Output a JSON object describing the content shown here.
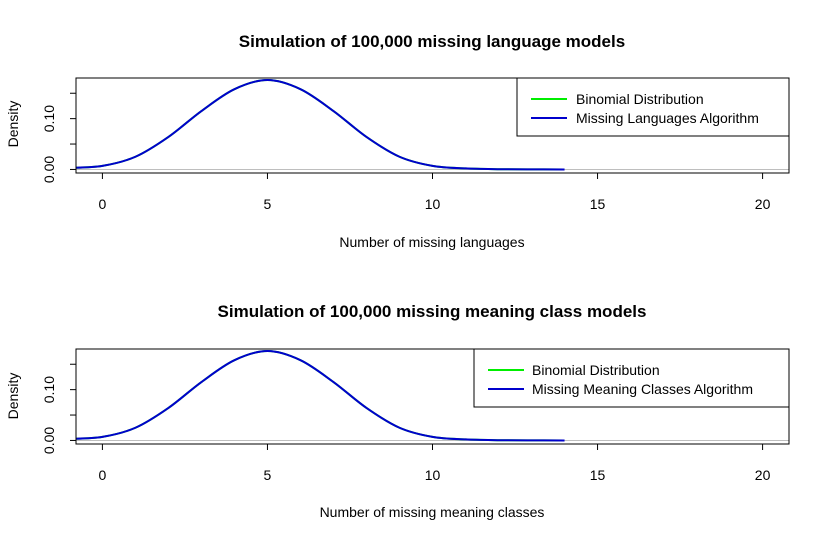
{
  "chart_data": [
    {
      "type": "line",
      "title": "Simulation of 100,000 missing language models",
      "xlabel": "Number of missing languages",
      "ylabel": "Density",
      "xlim": [
        -0.8,
        20.8
      ],
      "ylim": [
        -0.007,
        0.18
      ],
      "xticks": [
        "0",
        "5",
        "10",
        "15",
        "20"
      ],
      "yticks": [
        "0.00",
        "0.10"
      ],
      "ytick_values": [
        0.0,
        0.05,
        0.1,
        0.15
      ],
      "hline": 0,
      "legend": {
        "position": "top-right",
        "entries": [
          {
            "label": "Binomial Distribution",
            "color": "#00ee00"
          },
          {
            "label": "Missing Languages Algorithm",
            "color": "#0000cc"
          }
        ]
      },
      "series": [
        {
          "name": "Binomial Distribution",
          "color": "#00ee00",
          "x": [
            -1,
            0,
            1,
            2,
            3,
            4,
            5,
            6,
            7,
            8,
            9,
            10,
            11,
            12,
            13,
            14
          ],
          "y": [
            0.003,
            0.007,
            0.025,
            0.064,
            0.115,
            0.158,
            0.176,
            0.158,
            0.115,
            0.064,
            0.025,
            0.007,
            0.002,
            0.0005,
            0.0001,
            0.0
          ]
        },
        {
          "name": "Missing Languages Algorithm",
          "color": "#0000cc",
          "x": [
            -1,
            0,
            1,
            2,
            3,
            4,
            5,
            6,
            7,
            8,
            9,
            10,
            11,
            12,
            13,
            14
          ],
          "y": [
            0.003,
            0.007,
            0.025,
            0.064,
            0.115,
            0.158,
            0.176,
            0.158,
            0.115,
            0.064,
            0.025,
            0.007,
            0.002,
            0.0005,
            0.0001,
            0.0
          ]
        }
      ]
    },
    {
      "type": "line",
      "title": "Simulation of 100,000 missing meaning class models",
      "xlabel": "Number of missing meaning classes",
      "ylabel": "Density",
      "xlim": [
        -0.8,
        20.8
      ],
      "ylim": [
        -0.007,
        0.18
      ],
      "xticks": [
        "0",
        "5",
        "10",
        "15",
        "20"
      ],
      "yticks": [
        "0.00",
        "0.10"
      ],
      "ytick_values": [
        0.0,
        0.05,
        0.1,
        0.15
      ],
      "hline": 0,
      "legend": {
        "position": "top-right",
        "entries": [
          {
            "label": "Binomial Distribution",
            "color": "#00ee00"
          },
          {
            "label": "Missing Meaning Classes Algorithm",
            "color": "#0000cc"
          }
        ]
      },
      "series": [
        {
          "name": "Binomial Distribution",
          "color": "#00ee00",
          "x": [
            -1,
            0,
            1,
            2,
            3,
            4,
            5,
            6,
            7,
            8,
            9,
            10,
            11,
            12,
            13,
            14
          ],
          "y": [
            0.003,
            0.007,
            0.025,
            0.064,
            0.115,
            0.158,
            0.176,
            0.158,
            0.115,
            0.064,
            0.025,
            0.007,
            0.002,
            0.0005,
            0.0001,
            0.0
          ]
        },
        {
          "name": "Missing Meaning Classes Algorithm",
          "color": "#0000cc",
          "x": [
            -1,
            0,
            1,
            2,
            3,
            4,
            5,
            6,
            7,
            8,
            9,
            10,
            11,
            12,
            13,
            14
          ],
          "y": [
            0.003,
            0.007,
            0.025,
            0.064,
            0.115,
            0.158,
            0.176,
            0.158,
            0.115,
            0.064,
            0.025,
            0.007,
            0.002,
            0.0005,
            0.0001,
            0.0
          ]
        }
      ]
    }
  ]
}
